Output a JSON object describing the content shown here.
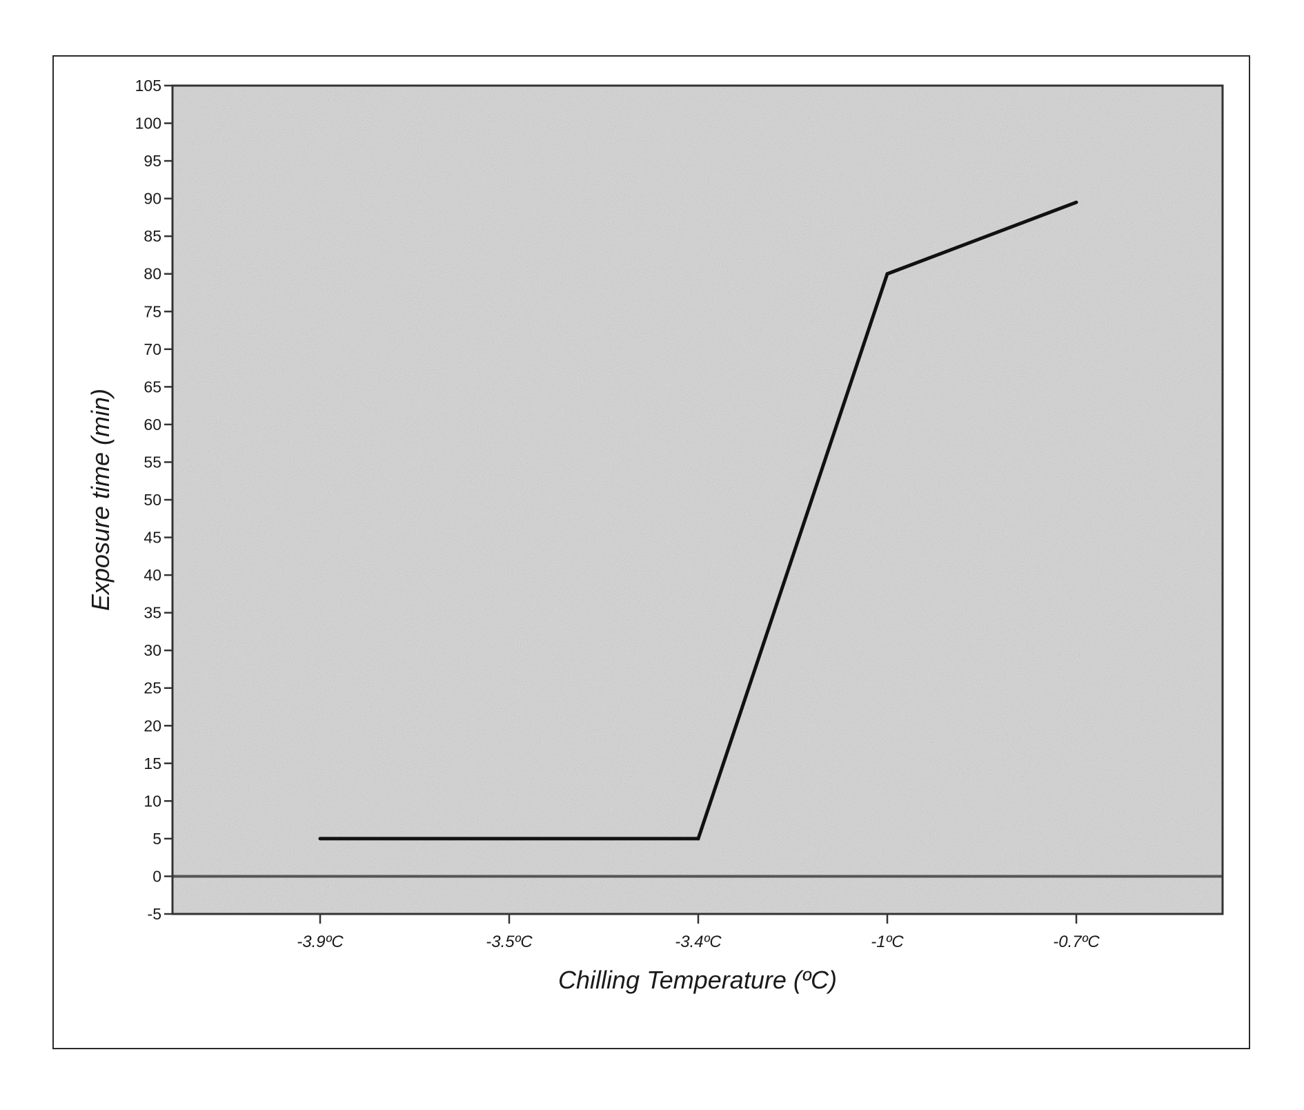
{
  "chart_data": {
    "type": "line",
    "title": "",
    "xlabel": "Chilling Temperature (ºC)",
    "ylabel": "Exposure time (min)",
    "categories": [
      "-3.9ºC",
      "-3.5ºC",
      "-3.4ºC",
      "-1ºC",
      "-0.7ºC"
    ],
    "series": [
      {
        "values": [
          5,
          5,
          5,
          80,
          89.5
        ]
      }
    ],
    "ylim": [
      -5,
      105
    ],
    "yticks": [
      -5,
      0,
      5,
      10,
      15,
      20,
      25,
      30,
      35,
      40,
      45,
      50,
      55,
      60,
      65,
      70,
      75,
      80,
      85,
      90,
      95,
      100,
      105
    ],
    "reference_line_y": 0,
    "grid": false,
    "legend": "none"
  },
  "colors": {
    "plot_background": "#d4d4d4",
    "line": "#111111",
    "axis": "#333333",
    "zero_line": "#555555"
  }
}
